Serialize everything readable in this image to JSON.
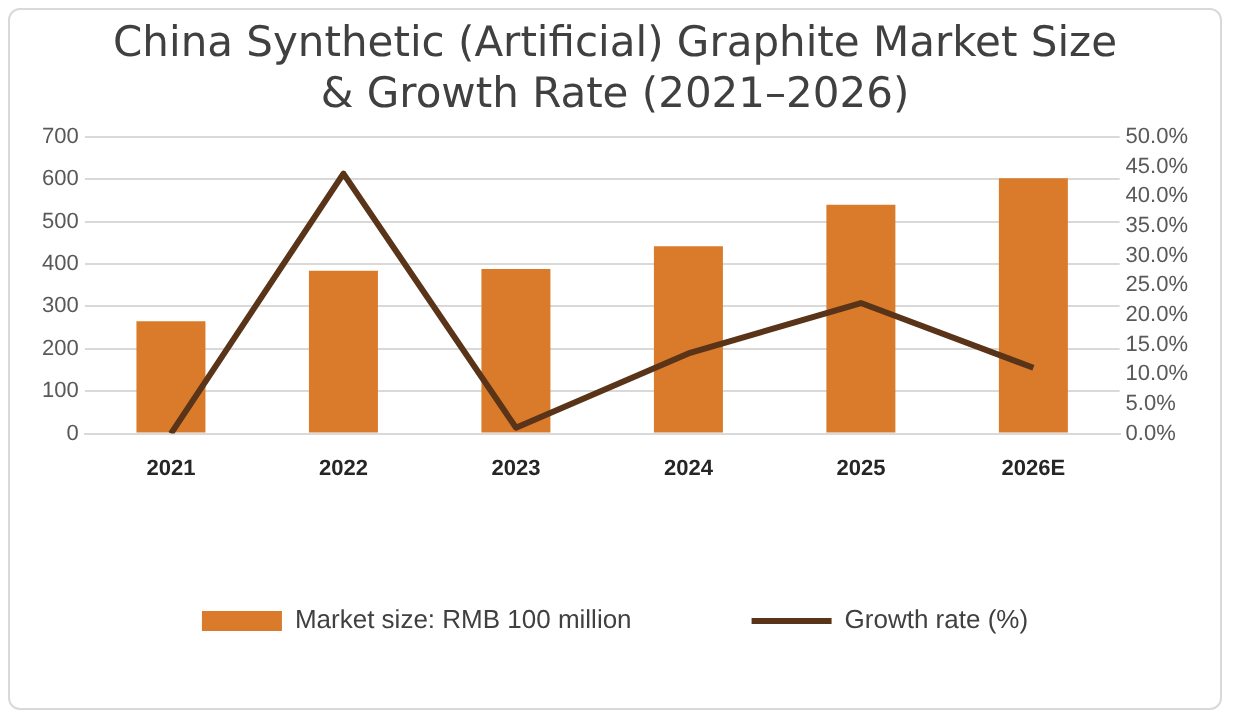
{
  "chart_data": {
    "type": "bar",
    "title": "China Synthetic (Artificial) Graphite Market Size\n& Growth Rate (2021–2026)",
    "categories": [
      "2021",
      "2022",
      "2023",
      "2024",
      "2025",
      "2026E"
    ],
    "series": [
      {
        "name": "Market size: RMB 100 million",
        "color": "#d97b2b",
        "values": [
          265,
          384,
          388,
          442,
          540,
          602
        ]
      },
      {
        "name": "Growth rate (%)",
        "type": "line",
        "axis": "y2",
        "color": "#5a3418",
        "values": [
          0,
          43.8,
          1.0,
          13.5,
          22.0,
          11.1
        ]
      }
    ],
    "ylim": [
      0,
      700
    ],
    "yticks": [
      0,
      100,
      200,
      300,
      400,
      500,
      600,
      700
    ],
    "y2lim": [
      0,
      50
    ],
    "y2ticks": [
      {
        "value": 0,
        "label": "0.0%"
      },
      {
        "value": 5,
        "label": "5.0%"
      },
      {
        "value": 10,
        "label": "10.0%"
      },
      {
        "value": 15,
        "label": "15.0%"
      },
      {
        "value": 20,
        "label": "20.0%"
      },
      {
        "value": 25,
        "label": "25.0%"
      },
      {
        "value": 30,
        "label": "30.0%"
      },
      {
        "value": 35,
        "label": "35.0%"
      },
      {
        "value": 40,
        "label": "40.0%"
      },
      {
        "value": 45,
        "label": "45.0%"
      },
      {
        "value": 50,
        "label": "50.0%"
      }
    ],
    "grid": "y",
    "legend": "bottom",
    "marker": "none",
    "line_style": "solid"
  }
}
